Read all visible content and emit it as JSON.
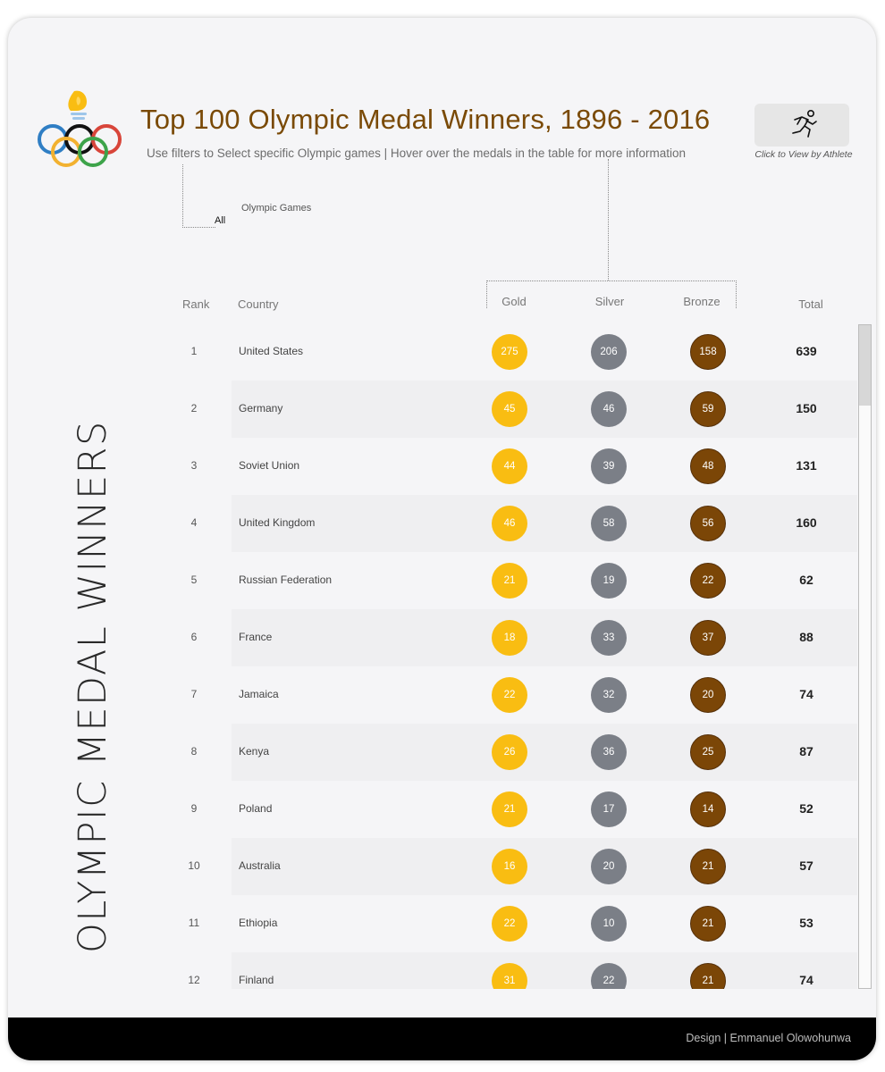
{
  "header": {
    "title": "Top 100 Olympic Medal Winners, 1896 - 2016",
    "subtitle": "Use filters to Select specific Olympic games | Hover over the medals in the table for more information",
    "athlete_button_caption": "Click to View by Athlete",
    "athlete_icon": "running-athlete-icon",
    "logo_icon": "olympic-rings-torch-logo"
  },
  "filter": {
    "label": "Olympic Games",
    "value": "All"
  },
  "side_title": "OLYMPIC MEDAL WINNERS",
  "table": {
    "headers": {
      "rank": "Rank",
      "country": "Country",
      "gold": "Gold",
      "silver": "Silver",
      "bronze": "Bronze",
      "total": "Total"
    },
    "rows": [
      {
        "rank": "1",
        "country": "United States",
        "gold": "275",
        "silver": "206",
        "bronze": "158",
        "total": "639"
      },
      {
        "rank": "2",
        "country": "Germany",
        "gold": "45",
        "silver": "46",
        "bronze": "59",
        "total": "150"
      },
      {
        "rank": "3",
        "country": "Soviet Union",
        "gold": "44",
        "silver": "39",
        "bronze": "48",
        "total": "131"
      },
      {
        "rank": "4",
        "country": "United Kingdom",
        "gold": "46",
        "silver": "58",
        "bronze": "56",
        "total": "160"
      },
      {
        "rank": "5",
        "country": "Russian Federation",
        "gold": "21",
        "silver": "19",
        "bronze": "22",
        "total": "62"
      },
      {
        "rank": "6",
        "country": "France",
        "gold": "18",
        "silver": "33",
        "bronze": "37",
        "total": "88"
      },
      {
        "rank": "7",
        "country": "Jamaica",
        "gold": "22",
        "silver": "32",
        "bronze": "20",
        "total": "74"
      },
      {
        "rank": "8",
        "country": "Kenya",
        "gold": "26",
        "silver": "36",
        "bronze": "25",
        "total": "87"
      },
      {
        "rank": "9",
        "country": "Poland",
        "gold": "21",
        "silver": "17",
        "bronze": "14",
        "total": "52"
      },
      {
        "rank": "10",
        "country": "Australia",
        "gold": "16",
        "silver": "20",
        "bronze": "21",
        "total": "57"
      },
      {
        "rank": "11",
        "country": "Ethiopia",
        "gold": "22",
        "silver": "10",
        "bronze": "21",
        "total": "53"
      },
      {
        "rank": "12",
        "country": "Finland",
        "gold": "31",
        "silver": "22",
        "bronze": "21",
        "total": "74"
      }
    ]
  },
  "colors": {
    "gold": "#f9bd12",
    "silver": "#7b7f87",
    "bronze": "#7b4607",
    "title": "#7a4a06"
  },
  "footer": {
    "credit": "Design |  Emmanuel Olowohunwa"
  }
}
